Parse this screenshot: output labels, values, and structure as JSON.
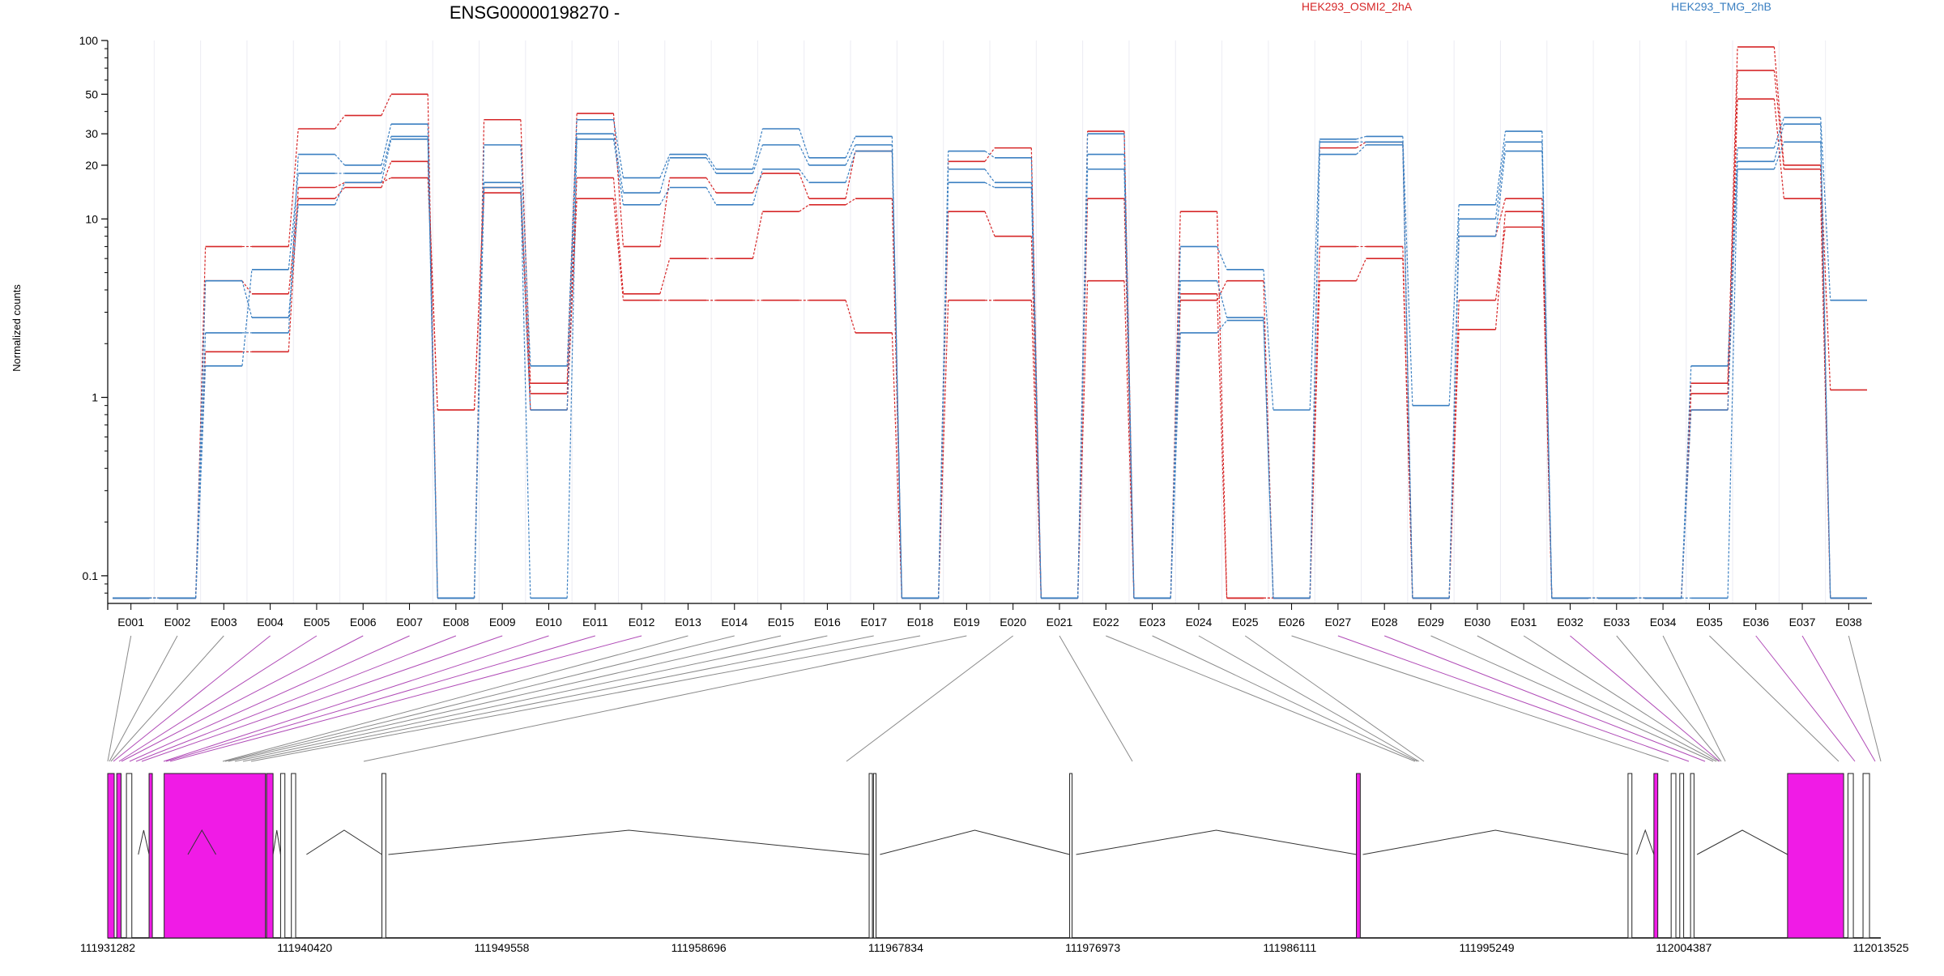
{
  "chart_data": {
    "type": "line",
    "title": "ENSG00000198270 -",
    "ylabel": "Normalized counts",
    "yscale": "log",
    "ylim": [
      0.07,
      100
    ],
    "y_ticks": [
      {
        "value": 100,
        "label": "100"
      },
      {
        "value": 50,
        "label": "50"
      },
      {
        "value": 30,
        "label": "30"
      },
      {
        "value": 20,
        "label": "20"
      },
      {
        "value": 10,
        "label": "10"
      },
      {
        "value": 1,
        "label": "1"
      },
      {
        "value": 0.1,
        "label": "0.1"
      }
    ],
    "grid": "vertical",
    "legend": [
      {
        "label": "HEK293_OSMI2_2hA",
        "color": "#d62728"
      },
      {
        "label": "HEK293_TMG_2hB",
        "color": "#3a7fc1"
      }
    ],
    "categories": [
      "E001",
      "E002",
      "E003",
      "E004",
      "E005",
      "E006",
      "E007",
      "E008",
      "E009",
      "E010",
      "E011",
      "E012",
      "E013",
      "E014",
      "E015",
      "E016",
      "E017",
      "E018",
      "E019",
      "E020",
      "E021",
      "E022",
      "E023",
      "E024",
      "E025",
      "E026",
      "E027",
      "E028",
      "E029",
      "E030",
      "E031",
      "E032",
      "E033",
      "E034",
      "E035",
      "E036",
      "E037",
      "E038"
    ],
    "series": [
      {
        "color": "#d62728",
        "values": [
          0.075,
          0.075,
          7,
          7,
          32,
          38,
          50,
          0.075,
          36,
          1.2,
          39,
          7,
          17,
          14,
          18,
          13,
          24,
          0.075,
          21,
          25,
          0.075,
          31,
          0.075,
          11,
          0.075,
          0.075,
          25,
          27,
          0.075,
          8,
          13,
          0.075,
          0.075,
          0.075,
          1.2,
          92,
          20,
          1.1
        ]
      },
      {
        "color": "#d62728",
        "values": [
          0.075,
          0.075,
          1.8,
          1.8,
          15,
          16,
          17,
          0.85,
          15,
          1.05,
          17,
          3.8,
          6,
          6,
          11,
          12,
          13,
          0.075,
          11,
          8,
          0.075,
          13,
          0.075,
          3.8,
          0.075,
          0.075,
          7,
          7,
          0.075,
          2.4,
          11,
          0.075,
          0.075,
          0.075,
          1.05,
          68,
          19,
          0.075
        ]
      },
      {
        "color": "#d62728",
        "values": [
          0.075,
          0.075,
          4.5,
          3.8,
          13,
          15,
          21,
          0.85,
          14,
          0.85,
          13,
          3.5,
          3.5,
          3.5,
          3.5,
          3.5,
          2.3,
          0.075,
          3.5,
          3.5,
          0.075,
          4.5,
          0.075,
          3.5,
          4.5,
          0.075,
          4.5,
          6,
          0.075,
          3.5,
          9,
          0.075,
          0.075,
          0.075,
          0.85,
          47,
          13,
          0.075
        ]
      },
      {
        "color": "#3a7fc1",
        "values": [
          0.075,
          0.075,
          2.3,
          2.3,
          23,
          20,
          34,
          0.075,
          26,
          1.5,
          36,
          17,
          23,
          19,
          32,
          22,
          29,
          0.075,
          24,
          22,
          0.075,
          30,
          0.075,
          7,
          5.2,
          0.85,
          28,
          29,
          0.9,
          12,
          31,
          0.075,
          0.075,
          0.075,
          1.5,
          25,
          37,
          3.5
        ]
      },
      {
        "color": "#3a7fc1",
        "values": [
          0.075,
          0.075,
          1.5,
          5.2,
          18,
          18,
          29,
          0.075,
          16,
          0.85,
          30,
          14,
          22,
          18,
          26,
          20,
          26,
          0.075,
          19,
          16,
          0.075,
          23,
          0.075,
          4.5,
          2.8,
          0.075,
          27,
          27,
          0.075,
          10,
          27,
          0.075,
          0.075,
          0.075,
          0.85,
          21,
          34,
          0.075
        ]
      },
      {
        "color": "#3a7fc1",
        "values": [
          0.075,
          0.075,
          4.5,
          2.8,
          12,
          16,
          28,
          0.075,
          15,
          0.075,
          28,
          12,
          15,
          12,
          19,
          16,
          24,
          0.075,
          16,
          15,
          0.075,
          19,
          0.075,
          2.3,
          2.7,
          0.075,
          23,
          26,
          0.075,
          8,
          24,
          0.075,
          0.075,
          0.075,
          0.075,
          19,
          27,
          0.075
        ]
      }
    ],
    "genomic_axis": {
      "tick_labels": [
        "111931282",
        "111940420",
        "111949558",
        "111958696",
        "111967834",
        "111976973",
        "111986111",
        "111995249",
        "112004387",
        "112013525"
      ]
    }
  }
}
